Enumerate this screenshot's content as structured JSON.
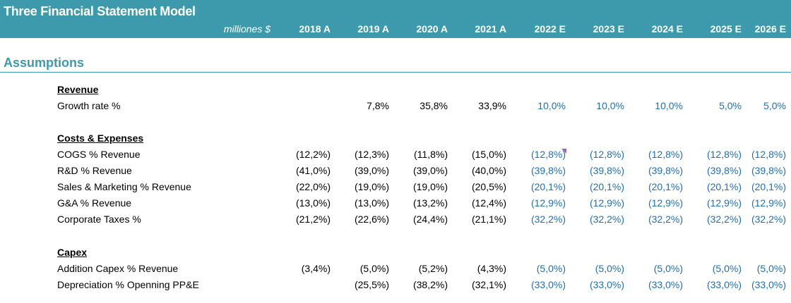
{
  "header": {
    "title": "Three Financial Statement Model",
    "unit": "milliones $",
    "years": [
      "2018 A",
      "2019 A",
      "2020 A",
      "2021 A",
      "2022 E",
      "2023 E",
      "2024 E",
      "2025 E",
      "2026 E"
    ]
  },
  "section": {
    "title": "Assumptions"
  },
  "groups": [
    {
      "heading": "Revenue",
      "rows": [
        {
          "label": "Growth rate %",
          "values": [
            "",
            "7,8%",
            "35,8%",
            "33,9%",
            "10,0%",
            "10,0%",
            "10,0%",
            "5,0%",
            "5,0%"
          ]
        }
      ]
    },
    {
      "heading": "Costs & Expenses",
      "rows": [
        {
          "label": "COGS % Revenue",
          "values": [
            "(12,2%)",
            "(12,3%)",
            "(11,8%)",
            "(15,0%)",
            "(12,8%)",
            "(12,8%)",
            "(12,8%)",
            "(12,8%)",
            "(12,8%)"
          ]
        },
        {
          "label": "R&D % Revenue",
          "values": [
            "(41,0%)",
            "(39,0%)",
            "(39,0%)",
            "(40,0%)",
            "(39,8%)",
            "(39,8%)",
            "(39,8%)",
            "(39,8%)",
            "(39,8%)"
          ]
        },
        {
          "label": "Sales & Marketing % Revenue",
          "values": [
            "(22,0%)",
            "(19,0%)",
            "(19,0%)",
            "(20,5%)",
            "(20,1%)",
            "(20,1%)",
            "(20,1%)",
            "(20,1%)",
            "(20,1%)"
          ]
        },
        {
          "label": "G&A  % Revenue",
          "values": [
            "(13,0%)",
            "(13,0%)",
            "(13,2%)",
            "(12,4%)",
            "(12,9%)",
            "(12,9%)",
            "(12,9%)",
            "(12,9%)",
            "(12,9%)"
          ]
        },
        {
          "label": "Corporate Taxes %",
          "values": [
            "(21,2%)",
            "(22,6%)",
            "(24,4%)",
            "(21,1%)",
            "(32,2%)",
            "(32,2%)",
            "(32,2%)",
            "(32,2%)",
            "(32,2%)"
          ]
        }
      ]
    },
    {
      "heading": "Capex",
      "rows": [
        {
          "label": "Addition Capex % Revenue",
          "values": [
            "(3,4%)",
            "(5,0%)",
            "(5,2%)",
            "(4,3%)",
            "(5,0%)",
            "(5,0%)",
            "(5,0%)",
            "(5,0%)",
            "(5,0%)"
          ]
        },
        {
          "label": "Depreciation % Openning PP&E",
          "values": [
            "",
            "(25,5%)",
            "(38,2%)",
            "(32,1%)",
            "(33,0%)",
            "(33,0%)",
            "(33,0%)",
            "(33,0%)",
            "(33,0%)"
          ]
        }
      ]
    }
  ],
  "colors": {
    "header_bg": "#3d9aac",
    "estimate_text": "#1f6fb5",
    "historical_text": "#000000"
  }
}
